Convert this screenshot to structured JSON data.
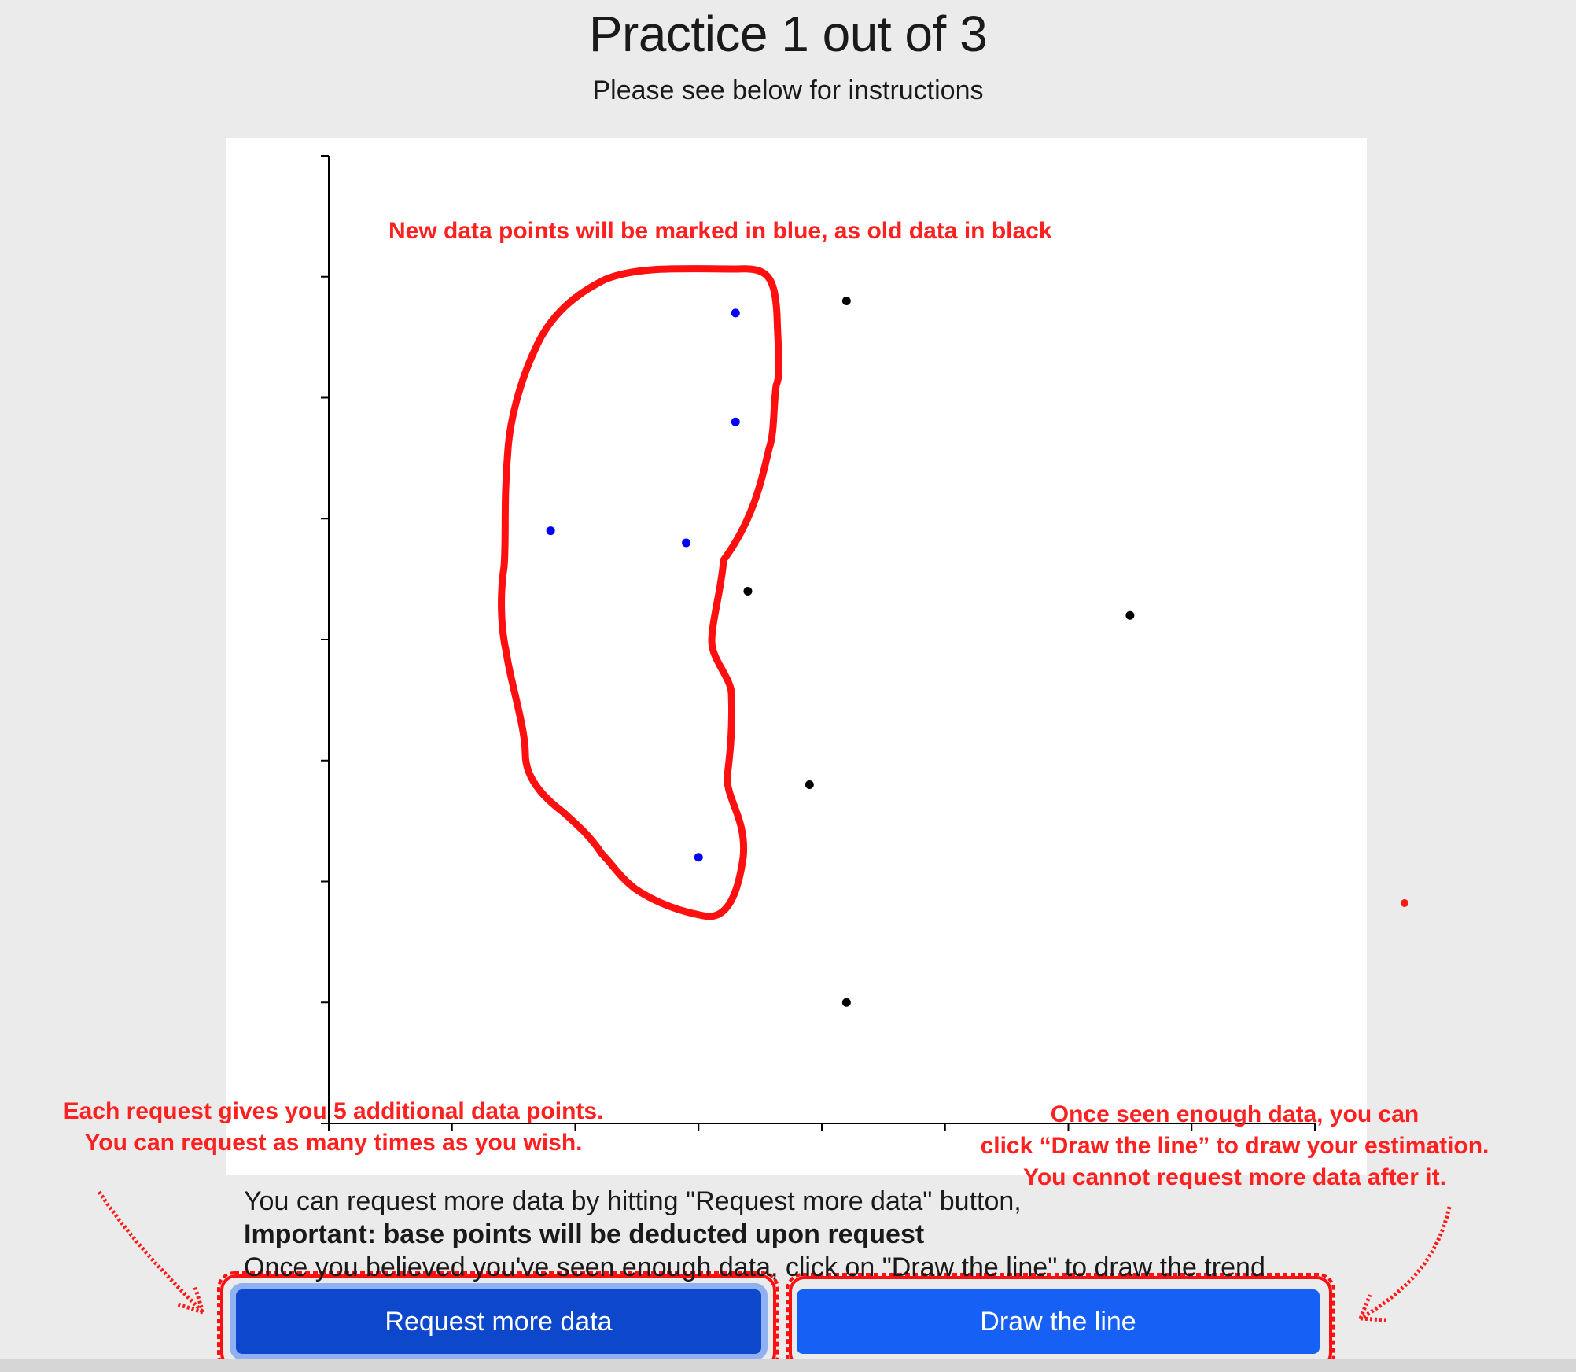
{
  "header": {
    "title": "Practice 1 out of 3",
    "subtitle": "Please see below for instructions"
  },
  "chart_data": {
    "type": "scatter",
    "title": "",
    "xlabel": "",
    "ylabel": "",
    "xlim": [
      0,
      8
    ],
    "ylim": [
      0,
      8
    ],
    "x_ticks": 8,
    "y_ticks": 8,
    "series": [
      {
        "color": "#000000",
        "points": [
          [
            4.2,
            6.8
          ],
          [
            3.4,
            4.4
          ],
          [
            6.5,
            4.2
          ],
          [
            3.9,
            2.8
          ],
          [
            4.2,
            1.0
          ]
        ]
      },
      {
        "color": "#0000ff",
        "points": [
          [
            3.3,
            6.7
          ],
          [
            3.3,
            5.8
          ],
          [
            1.8,
            4.9
          ],
          [
            2.9,
            4.8
          ],
          [
            3.0,
            2.2
          ]
        ]
      }
    ]
  },
  "cursor": {
    "color": "#ff1a1a"
  },
  "annotations": {
    "color": "#ff2020",
    "top": "New data points will be marked in blue, as old data in black",
    "left_line1": "Each request gives you 5 additional data points.",
    "left_line2": "You can request as many times as you wish.",
    "right_line1": "Once seen enough data, you can",
    "right_line2": "click “Draw the line” to draw your estimation.",
    "right_line3": "You cannot request more data after it."
  },
  "instructions": {
    "line1": "You can request more data by hitting \"Request more data\" button,",
    "line2": "Important: base points will be deducted upon request",
    "line3": "Once you believed you've seen enough data, click on \"Draw the line\" to draw the trend"
  },
  "buttons": {
    "request_label": "Request more data",
    "draw_label": "Draw the line"
  }
}
